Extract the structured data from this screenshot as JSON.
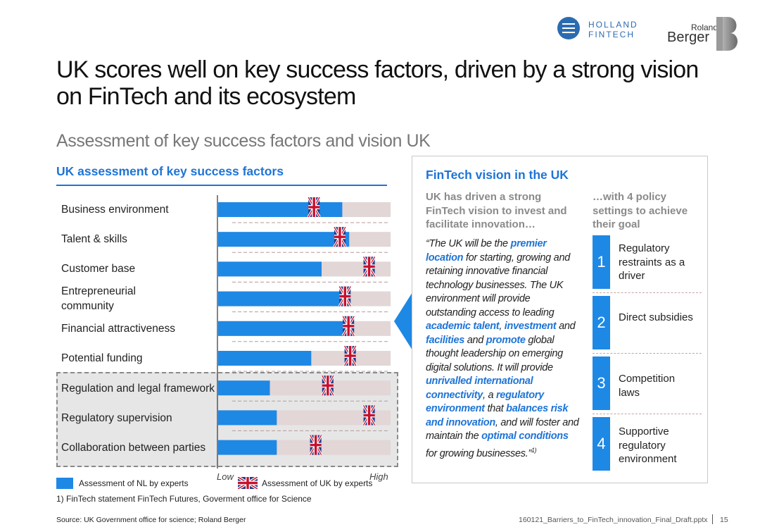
{
  "logos": {
    "holland_fintech_line1": "HOLLAND",
    "holland_fintech_line2": "FINTECH",
    "roland_line1": "Roland",
    "roland_line2": "Berger"
  },
  "title": "UK scores well on key success factors, driven by a strong vision on FinTech and its ecosystem",
  "subtitle": "Assessment of key success factors and vision UK",
  "chart_data": {
    "type": "bar",
    "title": "UK assessment of key success factors",
    "categories": [
      "Business environment",
      "Talent & skills",
      "Customer base",
      "Entrepreneurial community",
      "Financial attractiveness",
      "Potential funding",
      "Regulation and legal framework",
      "Regulatory supervision",
      "Collaboration between parties"
    ],
    "scale": [
      "Low",
      "High"
    ],
    "xlim": [
      0,
      1
    ],
    "series": [
      {
        "name": "Assessment of NL by experts",
        "type": "bar",
        "color": "#1e88e5",
        "values": [
          0.72,
          0.76,
          0.6,
          0.73,
          0.76,
          0.54,
          0.3,
          0.34,
          0.34
        ]
      },
      {
        "name": "Assessment of UK by experts",
        "type": "marker",
        "icon": "uk-flag-icon",
        "values": [
          0.56,
          0.71,
          0.88,
          0.74,
          0.76,
          0.77,
          0.64,
          0.88,
          0.57
        ]
      }
    ],
    "highlighted_categories": [
      "Regulation and legal framework",
      "Regulatory supervision",
      "Collaboration between parties"
    ],
    "track_color": "#e2d6d6"
  },
  "legend": {
    "nl_label": "Assessment of NL by experts",
    "uk_label": "Assessment of UK by experts",
    "low": "Low",
    "high": "High"
  },
  "footnote": "1) FinTech statement FinTech Futures, Goverment office for Science",
  "source": "Source: UK Government office for science; Roland Berger",
  "filename": "160121_Barriers_to_FinTech_innovation_Final_Draft.pptx",
  "page_number": "15",
  "vision": {
    "heading": "FinTech vision in the UK",
    "left_subheading": "UK has driven a strong FinTech vision to invest and facilitate innovation…",
    "right_subheading": "…with 4 policy settings to achieve their goal",
    "quote_parts": [
      {
        "text": "“The UK will be the ",
        "bold": false
      },
      {
        "text": "premier location",
        "bold": true
      },
      {
        "text": " for starting, growing and retaining innovative financial technology businesses. The UK environment will provide outstanding access to leading ",
        "bold": false
      },
      {
        "text": "academic talent",
        "bold": true
      },
      {
        "text": ", ",
        "bold": false
      },
      {
        "text": "investment",
        "bold": true
      },
      {
        "text": " and ",
        "bold": false
      },
      {
        "text": "facilities",
        "bold": true
      },
      {
        "text": " and ",
        "bold": false
      },
      {
        "text": "promote",
        "bold": true
      },
      {
        "text": " global thought leadership on emerging digital solutions. It will provide ",
        "bold": false
      },
      {
        "text": "unrivalled international connectivity",
        "bold": true
      },
      {
        "text": ", a ",
        "bold": false
      },
      {
        "text": "regulatory environment",
        "bold": true
      },
      {
        "text": " that ",
        "bold": false
      },
      {
        "text": "balances risk and innovation",
        "bold": true
      },
      {
        "text": ", and will foster and maintain the ",
        "bold": false
      },
      {
        "text": "optimal conditions",
        "bold": true
      },
      {
        "text": " for growing businesses.”",
        "bold": false
      }
    ],
    "quote_footnote_mark": "1)",
    "policies": [
      {
        "number": "1",
        "label": "Regulatory restraints as a driver"
      },
      {
        "number": "2",
        "label": "Direct subsidies"
      },
      {
        "number": "3",
        "label": "Competition laws"
      },
      {
        "number": "4",
        "label": "Supportive regulatory environment"
      }
    ]
  },
  "colors": {
    "accent_blue": "#1e74d6",
    "bar_blue": "#1e88e5",
    "subheading_gray": "#8a8a8a"
  }
}
